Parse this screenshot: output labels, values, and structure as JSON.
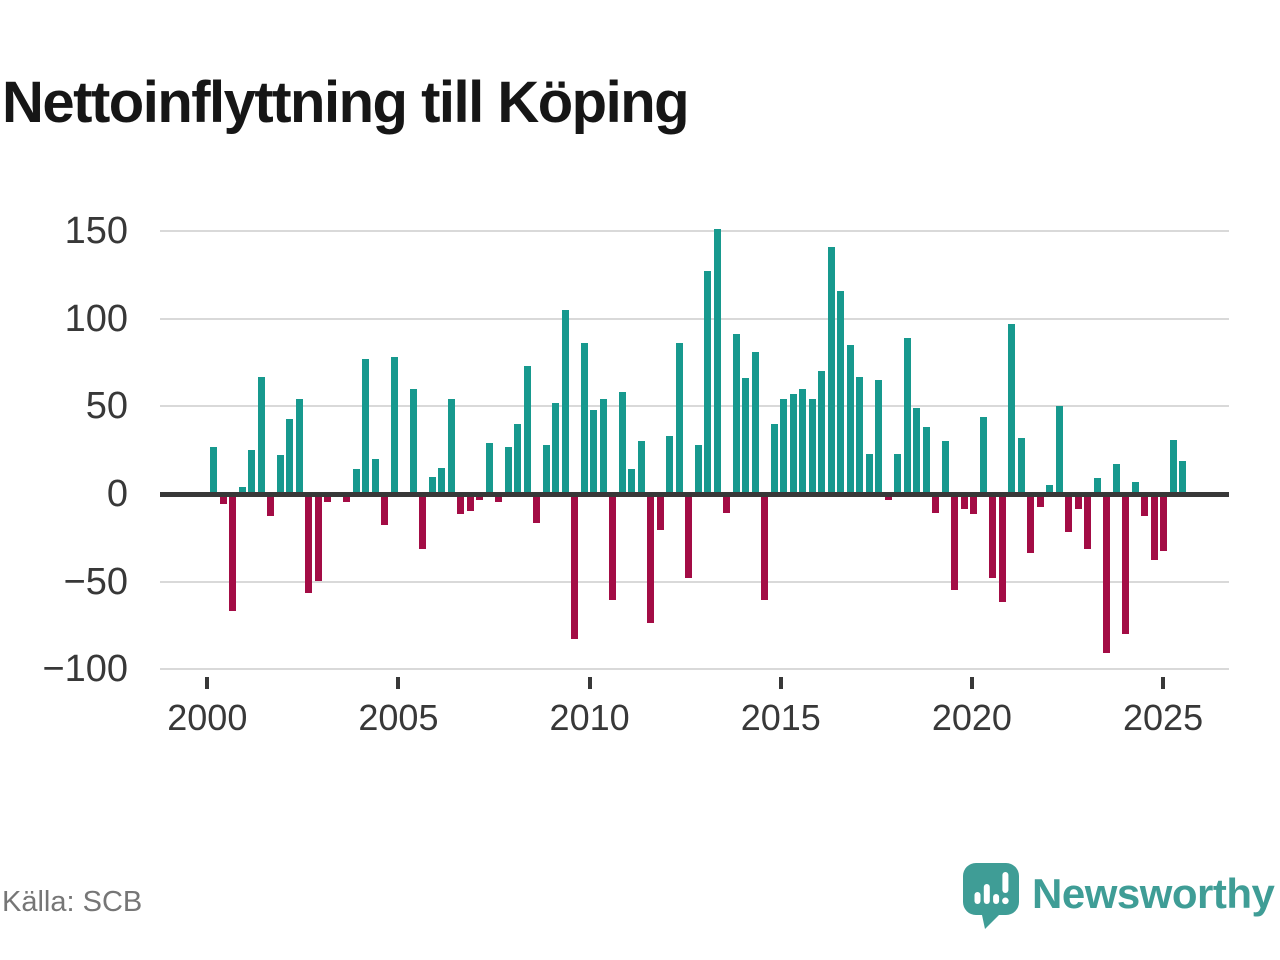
{
  "title": "Nettoinflyttning till Köping",
  "source": "Källa: SCB",
  "branding": {
    "name": "Newsworthy",
    "icon": "newsworthy-speech-bubble-chart-icon"
  },
  "colors": {
    "bar_positive": "#17998e",
    "bar_negative": "#a30c45",
    "axis_line": "#383838",
    "gridline": "#d9d9d9",
    "axis_text": "#383838",
    "title_text": "#161616",
    "source_text": "#767676",
    "brand_teal": "#3f9d96"
  },
  "chart_data": {
    "type": "bar",
    "title": "Nettoinflyttning till Köping",
    "xlabel": "",
    "ylabel": "",
    "grid": true,
    "ylim": [
      -110,
      160
    ],
    "y_ticks": [
      150,
      100,
      50,
      0,
      -50,
      -100
    ],
    "y_tick_labels": [
      "150",
      "100",
      "50",
      "0",
      "−50",
      "−100"
    ],
    "x_tick_years": [
      2000,
      2005,
      2010,
      2015,
      2020,
      2025
    ],
    "x_tick_labels": [
      "2000",
      "2005",
      "2010",
      "2015",
      "2020",
      "2025"
    ],
    "categories": [
      "2000 Q1",
      "2000 Q2",
      "2000 Q3",
      "2000 Q4",
      "2001 Q1",
      "2001 Q2",
      "2001 Q3",
      "2001 Q4",
      "2002 Q1",
      "2002 Q2",
      "2002 Q3",
      "2002 Q4",
      "2003 Q1",
      "2003 Q2",
      "2003 Q3",
      "2003 Q4",
      "2004 Q1",
      "2004 Q2",
      "2004 Q3",
      "2004 Q4",
      "2005 Q1",
      "2005 Q2",
      "2005 Q3",
      "2005 Q4",
      "2006 Q1",
      "2006 Q2",
      "2006 Q3",
      "2006 Q4",
      "2007 Q1",
      "2007 Q2",
      "2007 Q3",
      "2007 Q4",
      "2008 Q1",
      "2008 Q2",
      "2008 Q3",
      "2008 Q4",
      "2009 Q1",
      "2009 Q2",
      "2009 Q3",
      "2009 Q4",
      "2010 Q1",
      "2010 Q2",
      "2010 Q3",
      "2010 Q4",
      "2011 Q1",
      "2011 Q2",
      "2011 Q3",
      "2011 Q4",
      "2012 Q1",
      "2012 Q2",
      "2012 Q3",
      "2012 Q4",
      "2013 Q1",
      "2013 Q2",
      "2013 Q3",
      "2013 Q4",
      "2014 Q1",
      "2014 Q2",
      "2014 Q3",
      "2014 Q4",
      "2015 Q1",
      "2015 Q2",
      "2015 Q3",
      "2015 Q4",
      "2016 Q1",
      "2016 Q2",
      "2016 Q3",
      "2016 Q4",
      "2017 Q1",
      "2017 Q2",
      "2017 Q3",
      "2017 Q4",
      "2018 Q1",
      "2018 Q2",
      "2018 Q3",
      "2018 Q4",
      "2019 Q1",
      "2019 Q2",
      "2019 Q3",
      "2019 Q4",
      "2020 Q1",
      "2020 Q2",
      "2020 Q3",
      "2020 Q4",
      "2021 Q1",
      "2021 Q2",
      "2021 Q3",
      "2021 Q4",
      "2022 Q1",
      "2022 Q2",
      "2022 Q3",
      "2022 Q4",
      "2023 Q1",
      "2023 Q2",
      "2023 Q3",
      "2023 Q4",
      "2024 Q1",
      "2024 Q2",
      "2024 Q3",
      "2024 Q4",
      "2025 Q1",
      "2025 Q2",
      "2025 Q3"
    ],
    "values": [
      27,
      -5,
      -66,
      4,
      25,
      67,
      -12,
      22,
      43,
      54,
      -56,
      -49,
      -4,
      0,
      -4,
      14,
      77,
      20,
      -17,
      78,
      0,
      60,
      -31,
      10,
      15,
      54,
      -11,
      -9,
      -3,
      29,
      -4,
      27,
      40,
      73,
      -16,
      28,
      52,
      105,
      -82,
      86,
      48,
      54,
      -60,
      58,
      14,
      30,
      -73,
      -20,
      33,
      86,
      -47,
      28,
      127,
      151,
      -10,
      91,
      66,
      81,
      -60,
      40,
      54,
      57,
      60,
      54,
      70,
      141,
      116,
      85,
      67,
      23,
      65,
      -3,
      23,
      89,
      49,
      38,
      -10,
      30,
      -54,
      -8,
      -11,
      44,
      -47,
      -61,
      97,
      32,
      -33,
      -7,
      5,
      50,
      -21,
      -8,
      -31,
      9,
      -90,
      17,
      -79,
      7,
      -12,
      -37,
      -32,
      31,
      19
    ]
  }
}
